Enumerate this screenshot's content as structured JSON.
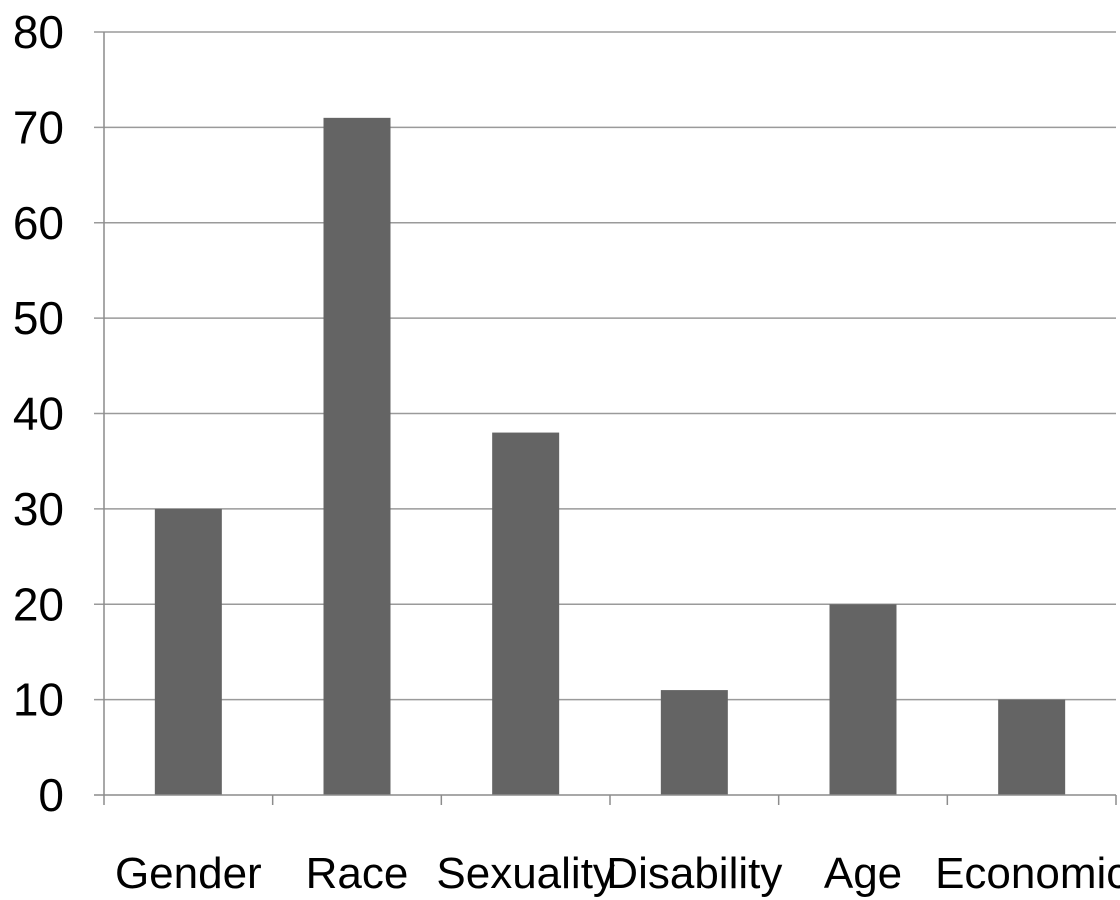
{
  "chart_data": {
    "type": "bar",
    "title": "",
    "xlabel": "",
    "ylabel": "",
    "categories": [
      "Gender",
      "Race",
      "Sexuality",
      "Disability",
      "Age",
      "Economic"
    ],
    "values": [
      30,
      71,
      38,
      11,
      20,
      10
    ],
    "ylim": [
      0,
      80
    ],
    "yticks": [
      0,
      10,
      20,
      30,
      40,
      50,
      60,
      70,
      80
    ],
    "grid": true,
    "legend": "none",
    "colors": {
      "bar": "#646464",
      "grid": "#9a9a9a",
      "axis": "#8c8c8c",
      "text": "#000000"
    }
  }
}
